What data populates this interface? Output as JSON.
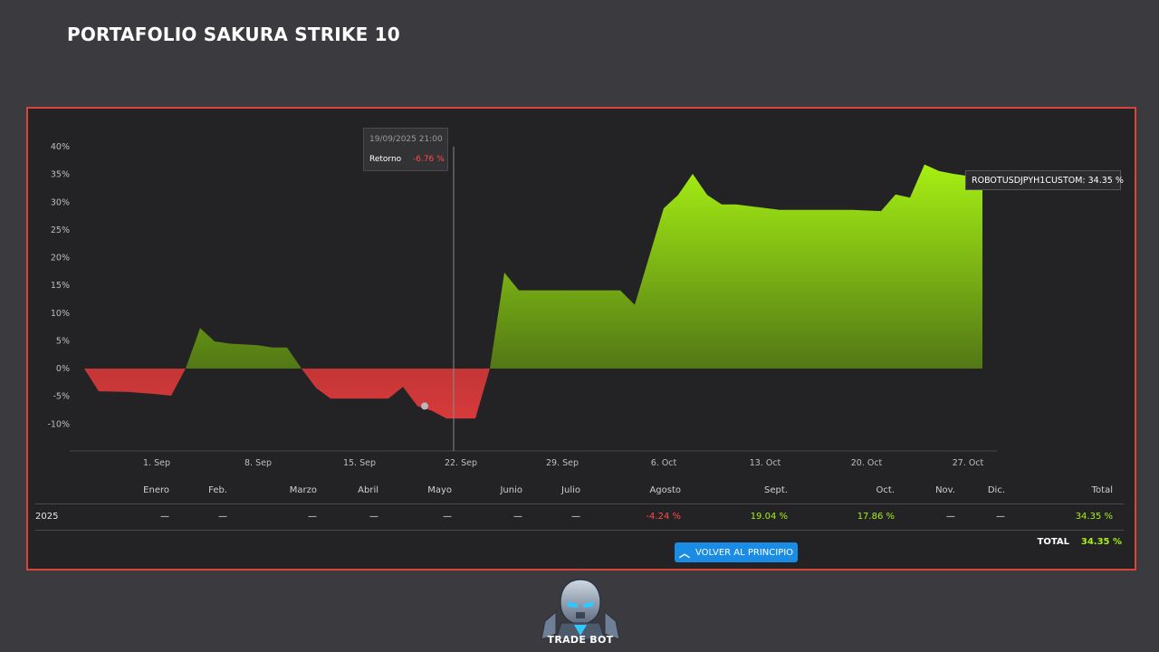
{
  "page": {
    "title": "PORTAFOLIO SAKURA STRIKE 10"
  },
  "colors": {
    "positive": "#a6f013",
    "negative": "#d63a3a",
    "accent_border": "#d8453b",
    "button": "#1a8ce6"
  },
  "chart_data": {
    "type": "area",
    "title": "",
    "xlabel": "",
    "ylabel": "",
    "x_ticks": [
      "1. Sep",
      "8. Sep",
      "15. Sep",
      "22. Sep",
      "29. Sep",
      "6. Oct",
      "13. Oct",
      "20. Oct",
      "27. Oct"
    ],
    "y_ticks": [
      "40%",
      "35%",
      "30%",
      "25%",
      "20%",
      "15%",
      "10%",
      "5%",
      "0%",
      "-5%",
      "-10%"
    ],
    "ylim": [
      -15,
      40
    ],
    "xlim": [
      "2025-08-26",
      "2025-10-29"
    ],
    "series": [
      {
        "name": "",
        "x": [
          "2025-08-27",
          "2025-08-28",
          "2025-08-30",
          "2025-09-01",
          "2025-09-02",
          "2025-09-03",
          "2025-09-04",
          "2025-09-05",
          "2025-09-06",
          "2025-09-08",
          "2025-09-09",
          "2025-09-10",
          "2025-09-11",
          "2025-09-12",
          "2025-09-13",
          "2025-09-14",
          "2025-09-16",
          "2025-09-17",
          "2025-09-18",
          "2025-09-19",
          "2025-09-20",
          "2025-09-21",
          "2025-09-23",
          "2025-09-24",
          "2025-09-25",
          "2025-09-26",
          "2025-09-27",
          "2025-10-03",
          "2025-10-04",
          "2025-10-06",
          "2025-10-07",
          "2025-10-08",
          "2025-10-09",
          "2025-10-10",
          "2025-10-11",
          "2025-10-14",
          "2025-10-15",
          "2025-10-19",
          "2025-10-21",
          "2025-10-22",
          "2025-10-23",
          "2025-10-24",
          "2025-10-25",
          "2025-10-26",
          "2025-10-28"
        ],
        "values": [
          0.0,
          -4.1,
          -4.2,
          -4.6,
          -4.9,
          0.0,
          7.3,
          4.9,
          4.5,
          4.2,
          3.8,
          3.8,
          0.0,
          -3.5,
          -5.4,
          -5.4,
          -5.4,
          -5.4,
          -3.3,
          -6.76,
          -7.6,
          -9.0,
          -9.0,
          0.0,
          17.3,
          14.1,
          14.1,
          14.1,
          11.5,
          28.9,
          31.3,
          35.1,
          31.3,
          29.6,
          29.6,
          28.6,
          28.6,
          28.6,
          28.4,
          31.4,
          30.8,
          36.8,
          35.6,
          35.1,
          34.35
        ]
      }
    ],
    "hover": {
      "date": "19/09/2025 21:00",
      "label": "Retorno",
      "value": "-6.76 %",
      "value_number": -6.76,
      "x": "2025-09-19"
    },
    "series_label": "ROBOTUSDJPYH1CUSTOM: 34.35 %",
    "grid": false,
    "legend": "none"
  },
  "table": {
    "headers": [
      "Enero",
      "Feb.",
      "Marzo",
      "Abril",
      "Mayo",
      "Junio",
      "Julio",
      "Agosto",
      "Sept.",
      "Oct.",
      "Nov.",
      "Dic.",
      "Total"
    ],
    "rows": [
      {
        "year": "2025",
        "values": [
          "—",
          "—",
          "—",
          "—",
          "—",
          "—",
          "—",
          "-4.24 %",
          "19.04 %",
          "17.86 %",
          "—",
          "—",
          "34.35 %"
        ]
      }
    ],
    "total_label": "TOTAL",
    "total_value": "34.35 %"
  },
  "button": {
    "label": "VOLVER AL PRINCIPIO"
  },
  "logo": {
    "text": "TRADE BOT",
    "icon": "robot-head-icon"
  }
}
